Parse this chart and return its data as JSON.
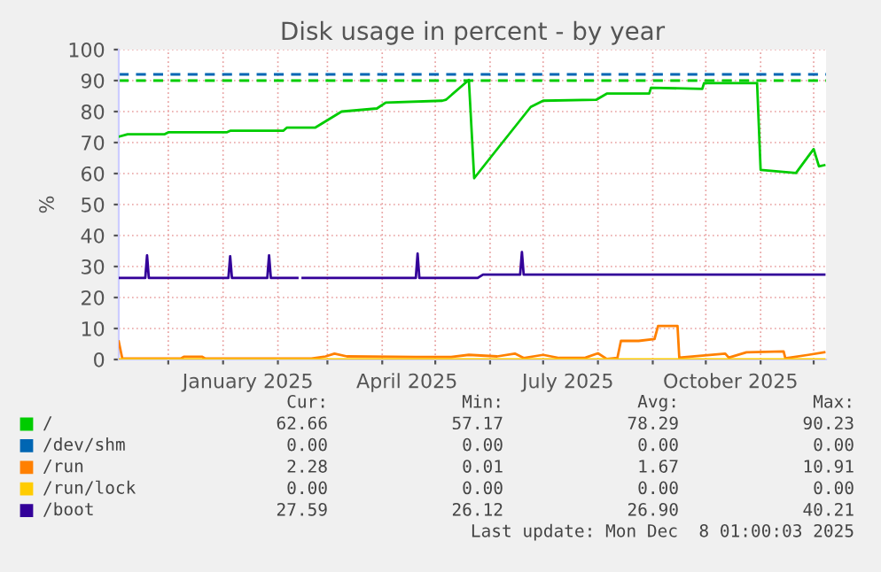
{
  "chart_data": {
    "type": "line",
    "title": "Disk usage in percent - by year",
    "ylabel": "%",
    "xlim": [
      "2024-11-03",
      "2025-12-08"
    ],
    "xticks": [
      {
        "value": "2024-12-01",
        "label": null
      },
      {
        "value": "2025-01-01",
        "label": null
      },
      {
        "value": "2025-01-15",
        "label": "January 2025"
      },
      {
        "value": "2025-02-01",
        "label": null
      },
      {
        "value": "2025-03-01",
        "label": null
      },
      {
        "value": "2025-04-01",
        "label": null
      },
      {
        "value": "2025-04-15",
        "label": "April 2025"
      },
      {
        "value": "2025-05-01",
        "label": null
      },
      {
        "value": "2025-06-01",
        "label": null
      },
      {
        "value": "2025-07-01",
        "label": null
      },
      {
        "value": "2025-07-15",
        "label": "July 2025"
      },
      {
        "value": "2025-08-01",
        "label": null
      },
      {
        "value": "2025-09-01",
        "label": null
      },
      {
        "value": "2025-10-01",
        "label": null
      },
      {
        "value": "2025-10-15",
        "label": "October 2025"
      },
      {
        "value": "2025-11-01",
        "label": null
      },
      {
        "value": "2025-12-01",
        "label": null
      }
    ],
    "ylim": [
      0,
      100
    ],
    "yticks": [
      0,
      10,
      20,
      30,
      40,
      50,
      60,
      70,
      80,
      90,
      100
    ],
    "grid": true,
    "legend": "bottom",
    "marker": "none",
    "line_style": "solid",
    "ref_lines": [
      {
        "axis": "y",
        "value": 92,
        "color": "#0066b3",
        "line_style": "dashed"
      },
      {
        "axis": "y",
        "value": 90,
        "color": "#00cc00",
        "line_style": "dashed"
      }
    ],
    "series": [
      {
        "name": "/",
        "color": "#00cc00",
        "x": [
          "2024-11-03",
          "2024-11-08",
          "2024-11-29",
          "2024-12-01",
          "2025-01-03",
          "2025-01-05",
          "2025-02-04",
          "2025-02-06",
          "2025-02-22",
          "2025-03-09",
          "2025-03-29",
          "2025-04-03",
          "2025-05-05",
          "2025-05-07",
          "2025-05-20",
          "2025-05-23",
          "2025-06-01",
          "2025-06-24",
          "2025-07-01",
          "2025-07-31",
          "2025-08-06",
          "2025-08-30",
          "2025-08-31",
          "2025-09-29",
          "2025-09-30",
          "2025-10-30",
          "2025-11-01",
          "2025-11-21",
          "2025-11-28",
          "2025-12-01",
          "2025-12-04",
          "2025-12-07"
        ],
        "values": [
          71.9,
          72.7,
          72.7,
          73.3,
          73.3,
          73.8,
          73.8,
          74.8,
          74.8,
          80,
          81,
          82.9,
          83.5,
          83.8,
          90.2,
          58.5,
          65,
          81.5,
          83.5,
          83.8,
          85.8,
          85.8,
          87.7,
          87.3,
          89.2,
          89.2,
          61.2,
          60.2,
          65.6,
          67.9,
          62.3,
          62.7
        ]
      },
      {
        "name": "/dev/shm",
        "color": "#0066b3"
      },
      {
        "name": "/run",
        "color": "#ff8000",
        "x": [
          "2024-11-03",
          "2024-11-05",
          "2024-12-08",
          "2024-12-10",
          "2024-12-20",
          "2024-12-22",
          "2025-02-20",
          "2025-02-28",
          "2025-03-05",
          "2025-03-12",
          "2025-04-20",
          "2025-05-10",
          "2025-05-20",
          "2025-06-05",
          "2025-06-15",
          "2025-06-20",
          "2025-07-01",
          "2025-07-10",
          "2025-07-25",
          "2025-08-01",
          "2025-08-06",
          "2025-08-12",
          "2025-08-14",
          "2025-08-24",
          "2025-09-02",
          "2025-09-04",
          "2025-09-15",
          "2025-09-16",
          "2025-10-12",
          "2025-10-14",
          "2025-10-24",
          "2025-11-14",
          "2025-11-15",
          "2025-11-28",
          "2025-12-07"
        ],
        "values": [
          5.8,
          0.3,
          0.3,
          0.9,
          0.9,
          0.3,
          0.3,
          1.0,
          1.9,
          1.0,
          0.8,
          0.8,
          1.5,
          1.0,
          1.9,
          0.5,
          1.5,
          0.5,
          0.6,
          2.0,
          0.2,
          0.5,
          6.0,
          6.0,
          6.6,
          10.8,
          10.8,
          0.6,
          1.9,
          0.6,
          2.3,
          2.6,
          0.4,
          1.5,
          2.3
        ]
      },
      {
        "name": "/run/lock",
        "color": "#ffcc00",
        "x": [
          "2024-11-03",
          "2025-12-07"
        ],
        "values": [
          0,
          0
        ]
      },
      {
        "name": "/boot",
        "color": "#330099",
        "x": [
          "2024-11-03",
          "2024-11-18",
          "2024-11-19",
          "2024-11-20",
          "2025-01-04",
          "2025-01-05",
          "2025-01-06",
          "2025-01-26",
          "2025-01-27",
          "2025-01-28",
          "2025-02-12",
          "2025-02-13",
          "2025-02-15",
          "2025-04-20",
          "2025-04-21",
          "2025-04-22",
          "2025-05-25",
          "2025-05-28",
          "2025-06-18",
          "2025-06-19",
          "2025-06-20",
          "2025-12-07"
        ],
        "values": [
          26.3,
          26.3,
          33.6,
          26.3,
          26.3,
          33.3,
          26.3,
          26.3,
          33.6,
          26.3,
          26.3,
          null,
          26.3,
          26.3,
          34.2,
          26.3,
          26.3,
          27.4,
          27.4,
          34.7,
          27.4,
          27.4
        ]
      }
    ],
    "annotations": [
      "Cur:",
      "Min:",
      "Avg:",
      "Max:",
      "62.66",
      "57.17",
      "78.29",
      "90.23",
      "0.00",
      "0.00",
      "0.00",
      "0.00",
      "2.28",
      "0.01",
      "1.67",
      "10.91",
      "0.00",
      "0.00",
      "0.00",
      "0.00",
      "27.59",
      "26.12",
      "26.90",
      "40.21",
      "Last update: Mon Dec  8 01:00:03 2025"
    ]
  }
}
